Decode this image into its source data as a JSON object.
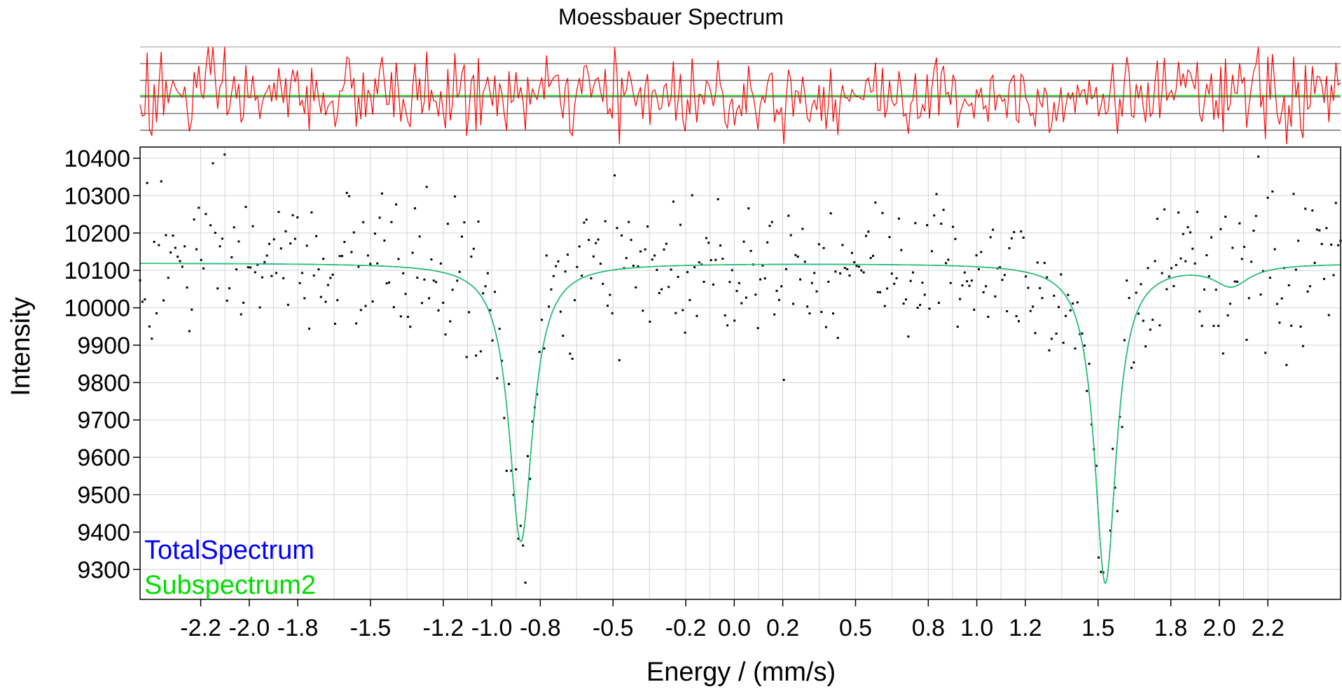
{
  "chart_data": {
    "type": "scatter",
    "title": "Moessbauer Spectrum",
    "xlabel": "Energy / (mm/s)",
    "ylabel": "Intensity",
    "xlim": [
      -2.45,
      2.5
    ],
    "ylim": [
      9220,
      10430
    ],
    "x_ticks": [
      -2.2,
      -2.0,
      -1.8,
      -1.5,
      -1.2,
      -1.0,
      -0.8,
      -0.5,
      -0.2,
      0.0,
      0.2,
      0.5,
      0.8,
      1.0,
      1.2,
      1.5,
      1.8,
      2.0,
      2.2
    ],
    "x_tick_labels": [
      "-2.2",
      "-2.0",
      "-1.8",
      "-1.5",
      "-1.2",
      "-1.0",
      "-0.8",
      "-0.5",
      "-0.2",
      "0.0",
      "0.2",
      "0.5",
      "0.8",
      "1.0",
      "1.2",
      "1.5",
      "1.8",
      "2.0",
      "2.2"
    ],
    "y_ticks": [
      9300,
      9400,
      9500,
      9600,
      9700,
      9800,
      9900,
      10000,
      10100,
      10200,
      10300,
      10400
    ],
    "y_tick_labels": [
      "9300",
      "9400",
      "9500",
      "9600",
      "9700",
      "9800",
      "9900",
      "10000",
      "10100",
      "10200",
      "10300",
      "10400"
    ],
    "grid": true,
    "legend": {
      "placement": "bottom-left",
      "entries": [
        {
          "name": "TotalSpectrum",
          "color": "#0000ff"
        },
        {
          "name": "Subspectrum2",
          "color": "#00dd00"
        }
      ]
    },
    "baseline": 10120,
    "fit_model": {
      "peaks": [
        {
          "center": -0.88,
          "depth": 745,
          "width": 0.12
        },
        {
          "center": 1.53,
          "depth": 855,
          "width": 0.11
        },
        {
          "center": 2.05,
          "depth": 55,
          "width": 0.18
        }
      ]
    },
    "data_points": {
      "x_start": -2.45,
      "x_end": 2.5,
      "count": 512,
      "noise_sd": 95
    },
    "residual_panel": {
      "gridline_count": 6,
      "series_color": "#ff0000",
      "zero_line_color": "#00dd00"
    }
  }
}
